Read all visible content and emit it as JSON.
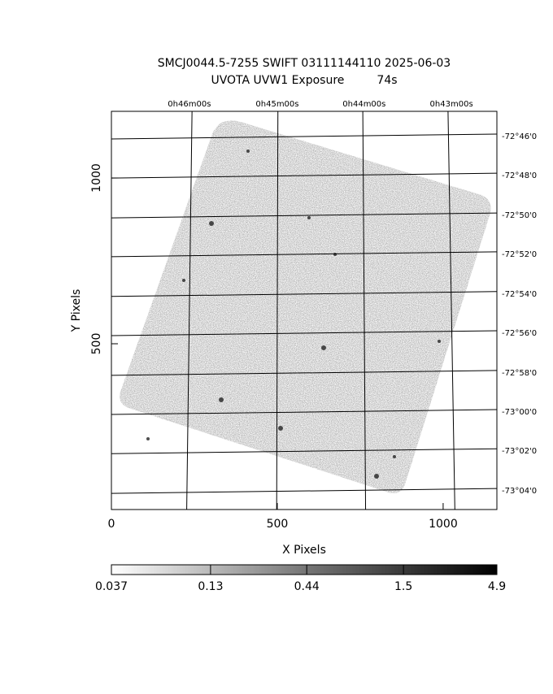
{
  "chart_data": {
    "type": "image",
    "title": [
      "SMCJ0044.5-7255 SWIFT 03111144110 2025-06-03",
      "UVOTA UVW1 Exposure         74s"
    ],
    "xlabel": "X Pixels",
    "ylabel": "Y Pixels",
    "xlim": [
      0,
      1162
    ],
    "ylim": [
      0,
      1201
    ],
    "xticks": [
      0,
      500,
      1000
    ],
    "yticks": [
      500,
      1000
    ],
    "top_ticks": [
      {
        "value": 235,
        "label": "0h46m00s"
      },
      {
        "value": 500,
        "label": "0h45m00s"
      },
      {
        "value": 762,
        "label": "0h44m00s"
      },
      {
        "value": 1025,
        "label": "0h43m00s"
      }
    ],
    "right_ticks": [
      {
        "value": 1125,
        "label": "-72°46'0"
      },
      {
        "value": 1007,
        "label": "-72°48'0"
      },
      {
        "value": 887,
        "label": "-72°50'0"
      },
      {
        "value": 770,
        "label": "-72°52'0"
      },
      {
        "value": 650,
        "label": "-72°54'0"
      },
      {
        "value": 532,
        "label": "-72°56'0"
      },
      {
        "value": 412,
        "label": "-72°58'0"
      },
      {
        "value": 294,
        "label": "-73°00'0"
      },
      {
        "value": 176,
        "label": "-73°02'0"
      },
      {
        "value": 56,
        "label": "-73°04'0"
      }
    ],
    "grid": true,
    "colorbar": {
      "scale": "log",
      "lim": [
        0.037,
        4.9
      ],
      "ticks": [
        0.037,
        0.13,
        0.44,
        1.5,
        4.9
      ]
    }
  }
}
